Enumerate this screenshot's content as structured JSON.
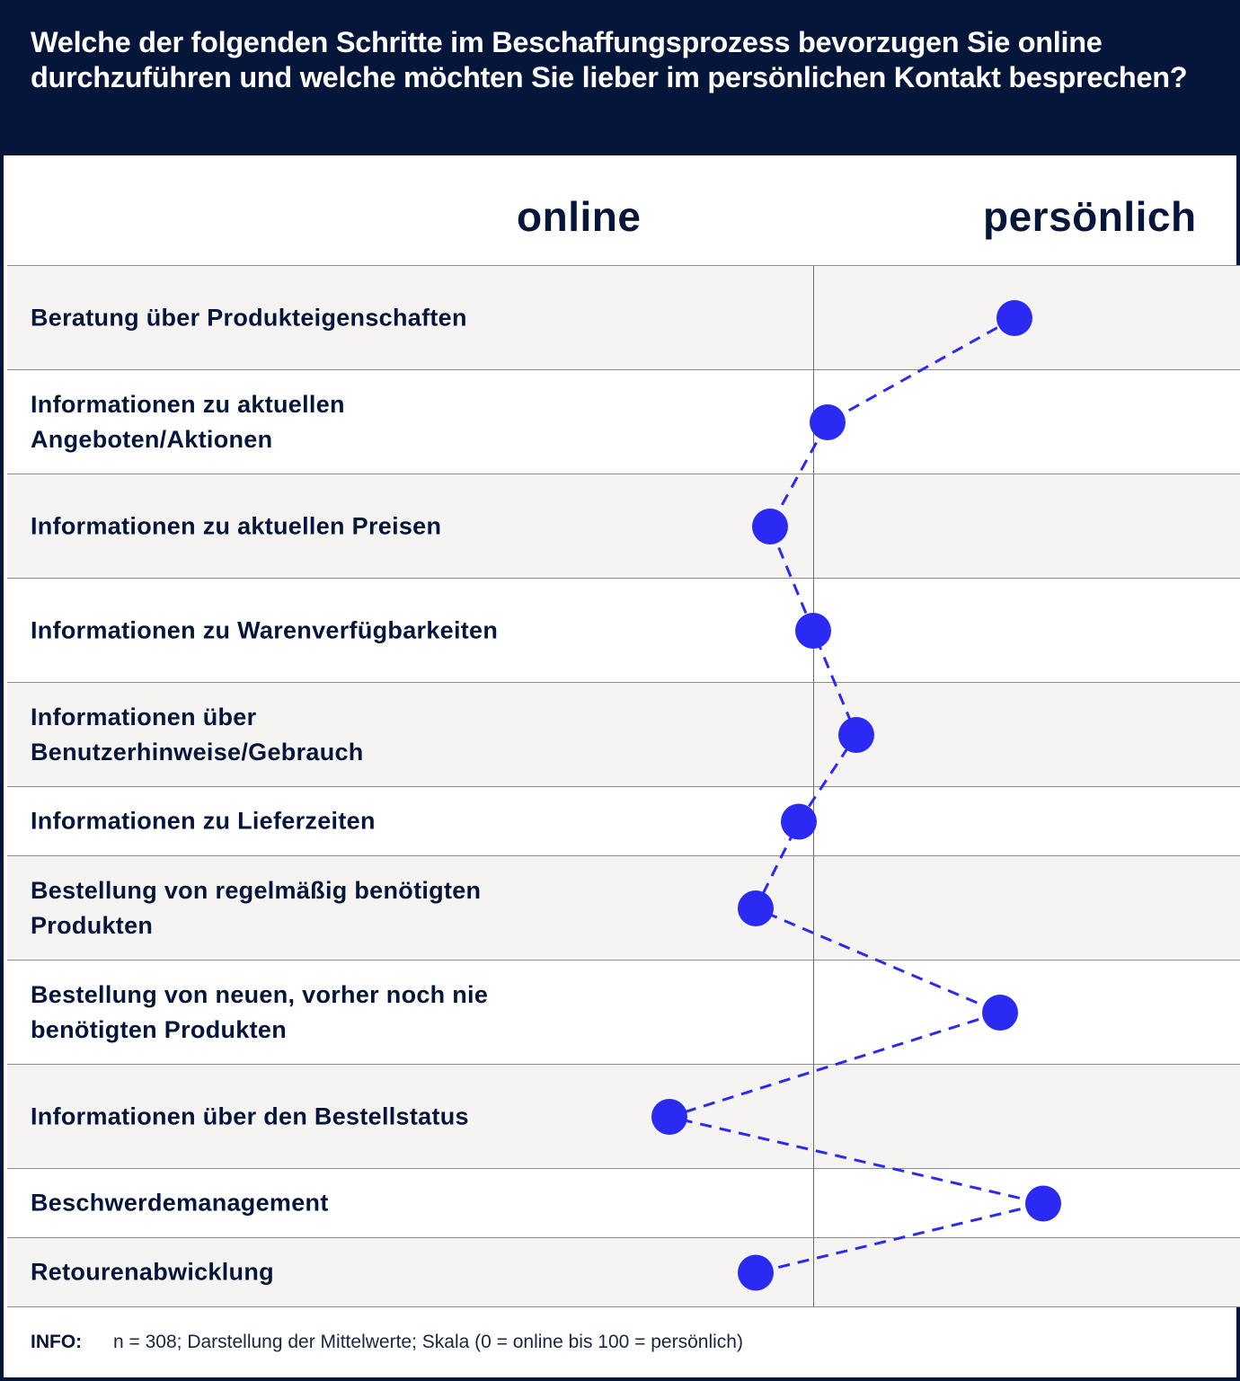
{
  "header": {
    "title": "Welche der folgenden Schritte im Beschaffungsprozess bevorzugen Sie online durchzuführen und welche möchten Sie lieber im persönlichen Kontakt besprechen?"
  },
  "columns": {
    "online": "online",
    "personal": "persönlich"
  },
  "info": {
    "label": "INFO:",
    "text": "n = 308; Darstellung der Mittelwerte; Skala (0 = online bis 100 = persönlich)"
  },
  "colors": {
    "navy": "#06163a",
    "accent": "#2a2af2",
    "row_shade": "#f5f4f2"
  },
  "chart_data": {
    "type": "scatter",
    "connected": "dashed-line",
    "scale": [
      0,
      100
    ],
    "categories": [
      "Beratung über Produkteigenschaften",
      "Informationen zu aktuellen Angeboten/Aktionen",
      "Informationen zu aktuellen Preisen",
      "Informationen zu Warenverfügbarkeiten",
      "Informationen über Benutzerhinweise/Gebrauch",
      "Informationen zu Lieferzeiten",
      "Bestellung von regelmäßig benötigten Produkten",
      "Bestellung von neuen, vorher noch nie benötigten Produkten",
      "Informationen über den Bestellstatus",
      "Beschwerdemanagement",
      "Retourenabwicklung"
    ],
    "values": [
      64,
      51,
      47,
      50,
      53,
      49,
      46,
      63,
      40,
      66,
      46
    ]
  }
}
